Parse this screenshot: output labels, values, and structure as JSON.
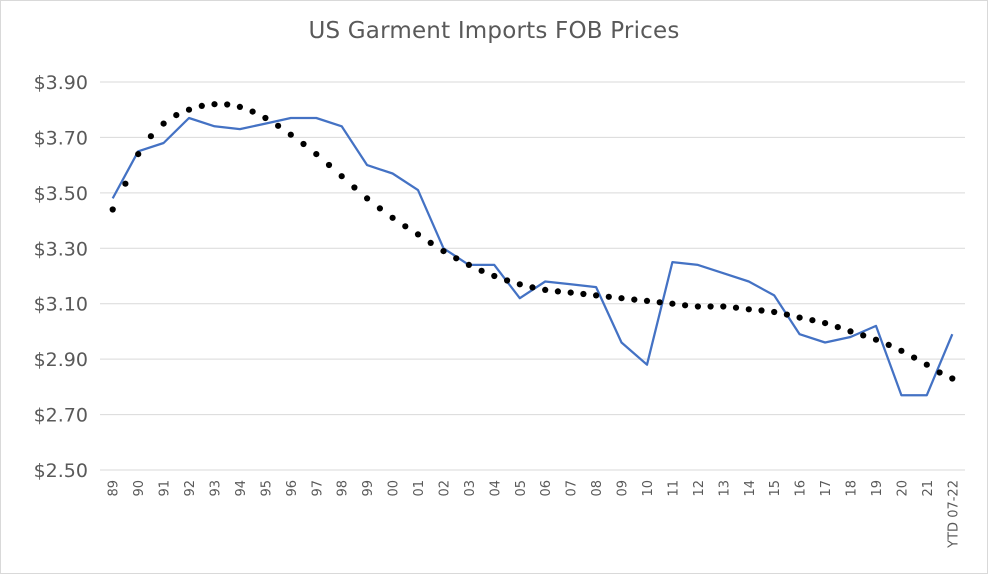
{
  "chart_data": {
    "type": "line",
    "title": "US Garment Imports FOB Prices",
    "xlabel": "",
    "ylabel": "",
    "ylim": [
      2.5,
      3.9
    ],
    "yticks": [
      "$2.50",
      "$2.70",
      "$2.90",
      "$3.10",
      "$3.30",
      "$3.50",
      "$3.70",
      "$3.90"
    ],
    "ytick_values": [
      2.5,
      2.7,
      2.9,
      3.1,
      3.3,
      3.5,
      3.7,
      3.9
    ],
    "categories": [
      "89",
      "90",
      "91",
      "92",
      "93",
      "94",
      "95",
      "96",
      "97",
      "98",
      "99",
      "00",
      "01",
      "02",
      "03",
      "04",
      "05",
      "06",
      "07",
      "08",
      "09",
      "10",
      "11",
      "12",
      "13",
      "14",
      "15",
      "16",
      "17",
      "18",
      "19",
      "20",
      "21",
      "YTD 07-22"
    ],
    "grid": true,
    "legend": "none",
    "series": [
      {
        "style": "solid",
        "color": "#4472c4",
        "values": [
          3.48,
          3.65,
          3.68,
          3.77,
          3.74,
          3.73,
          3.75,
          3.77,
          3.77,
          3.74,
          3.6,
          3.57,
          3.51,
          3.3,
          3.24,
          3.24,
          3.12,
          3.18,
          3.17,
          3.16,
          2.96,
          2.88,
          3.25,
          3.24,
          3.21,
          3.18,
          3.13,
          2.99,
          2.96,
          2.98,
          3.02,
          2.77,
          2.77,
          2.99
        ]
      },
      {
        "style": "dotted-trend",
        "color": "#000000",
        "values": [
          3.44,
          3.64,
          3.75,
          3.8,
          3.82,
          3.81,
          3.77,
          3.71,
          3.64,
          3.56,
          3.48,
          3.41,
          3.35,
          3.29,
          3.24,
          3.2,
          3.17,
          3.15,
          3.14,
          3.13,
          3.12,
          3.11,
          3.1,
          3.09,
          3.09,
          3.08,
          3.07,
          3.05,
          3.03,
          3.0,
          2.97,
          2.93,
          2.88,
          2.83
        ]
      }
    ]
  }
}
